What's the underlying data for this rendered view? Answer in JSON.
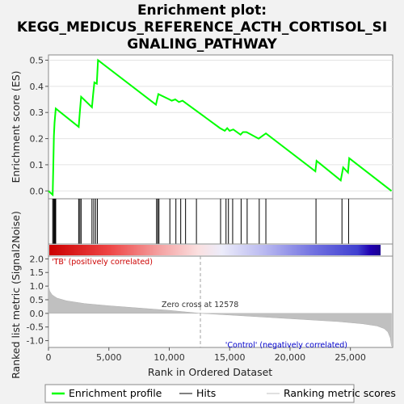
{
  "chart_data": {
    "type": "line",
    "title_lines": [
      "Enrichment plot:",
      "KEGG_MEDICUS_REFERENCE_ACTH_CORTISOL_SI",
      "GNALING_PATHWAY"
    ],
    "es_panel": {
      "ylabel": "Enrichment score (ES)",
      "ylim": [
        -0.03,
        0.52
      ],
      "yticks": [
        "0.0",
        "0.1",
        "0.2",
        "0.3",
        "0.4",
        "0.5"
      ],
      "ytick_values": [
        0.0,
        0.1,
        0.2,
        0.3,
        0.4,
        0.5
      ],
      "series": [
        {
          "name": "Enrichment profile",
          "color": "#00ff00",
          "x": [
            0,
            350,
            400,
            450,
            500,
            600,
            2500,
            2600,
            2700,
            3600,
            3700,
            3800,
            4000,
            4100,
            8900,
            9000,
            9100,
            10000,
            10200,
            10500,
            10800,
            11100,
            11400,
            14200,
            14600,
            14800,
            15000,
            15300,
            15900,
            16100,
            16400,
            17400,
            17700,
            18000,
            22100,
            22200,
            24200,
            24400,
            24800,
            24900,
            28400
          ],
          "y": [
            0.0,
            -0.015,
            0.1,
            0.21,
            0.26,
            0.315,
            0.245,
            0.305,
            0.36,
            0.32,
            0.37,
            0.415,
            0.41,
            0.5,
            0.33,
            0.35,
            0.37,
            0.35,
            0.345,
            0.35,
            0.34,
            0.345,
            0.335,
            0.24,
            0.23,
            0.24,
            0.23,
            0.235,
            0.215,
            0.225,
            0.225,
            0.2,
            0.21,
            0.22,
            0.075,
            0.115,
            0.04,
            0.09,
            0.07,
            0.125,
            0.0
          ]
        }
      ]
    },
    "hits": [
      350,
      420,
      480,
      540,
      600,
      2500,
      2600,
      2700,
      3600,
      3750,
      3900,
      4050,
      8950,
      9050,
      9150,
      10050,
      10550,
      10950,
      11350,
      12250,
      14250,
      14700,
      14900,
      15250,
      15950,
      16450,
      17450,
      18000,
      22150,
      24300,
      24850
    ],
    "rank_panel": {
      "ylabel": "Ranked list metric (Signal2Noise)",
      "xlabel": "Rank in Ordered Dataset",
      "xlim": [
        0,
        28500
      ],
      "xticks": [
        "0",
        "5,000",
        "10,000",
        "15,000",
        "20,000",
        "25,000"
      ],
      "xtick_values": [
        0,
        5000,
        10000,
        15000,
        20000,
        25000
      ],
      "ylim": [
        -1.25,
        2.1
      ],
      "yticks": [
        "2.0",
        "1.5",
        "1.0",
        "0.5",
        "0.0",
        "-0.5",
        "-1.0"
      ],
      "ytick_values": [
        2.0,
        1.5,
        1.0,
        0.5,
        0.0,
        -0.5,
        -1.0
      ],
      "profile_x": [
        0,
        100,
        300,
        700,
        1500,
        3000,
        5000,
        8000,
        10000,
        12578,
        15000,
        18000,
        21000,
        24000,
        26000,
        27200,
        27800,
        28100,
        28300,
        28400
      ],
      "profile_y": [
        1.0,
        0.82,
        0.68,
        0.56,
        0.46,
        0.36,
        0.28,
        0.18,
        0.11,
        0.0,
        -0.06,
        -0.14,
        -0.22,
        -0.3,
        -0.38,
        -0.46,
        -0.56,
        -0.68,
        -0.9,
        -1.2
      ],
      "zero_cross": 12578,
      "zero_cross_label": "Zero cross at 12578",
      "pos_label": "'TB' (positively correlated)",
      "neg_label": "'Control' (negatively correlated)"
    },
    "legend": [
      {
        "label": "Enrichment profile",
        "color": "#00ff00"
      },
      {
        "label": "Hits",
        "color": "#000000"
      },
      {
        "label": "Ranking metric scores",
        "color": "#c0c0c0"
      }
    ],
    "colors": {
      "pos_text": "#cc0000",
      "neg_text": "#0000cc",
      "profile_fill": "#c0c0c0",
      "zero_line": "#a0a0a0"
    }
  }
}
